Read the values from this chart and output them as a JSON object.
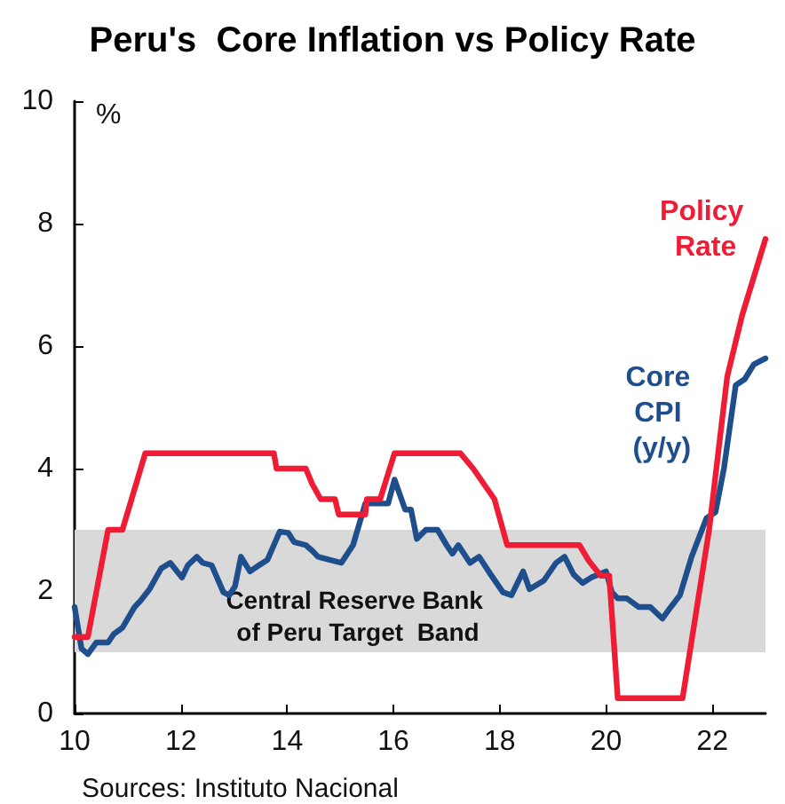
{
  "chart_data": {
    "type": "line",
    "title": "Peru's  Core Inflation vs Policy Rate",
    "ylabel": "%",
    "xlim": [
      10,
      23
    ],
    "xticks": [
      10,
      12,
      14,
      16,
      18,
      20,
      22
    ],
    "ylim": [
      0,
      10
    ],
    "yticks": [
      0,
      2,
      4,
      6,
      8,
      10
    ],
    "grid": false,
    "legend": false,
    "marker": "none",
    "bands": [
      {
        "axis": "y",
        "from": 1,
        "to": 3,
        "label": "Central Reserve Bank of Peru Target  Band",
        "color": "#d9d9d9"
      }
    ],
    "annotations": [
      "Sources: Instituto Nacional"
    ],
    "series": [
      {
        "name": "Core CPI (y/y)",
        "color": "#1f4e8c",
        "x": [
          10,
          10.13,
          10.25,
          10.41,
          10.63,
          10.74,
          10.9,
          11.13,
          11.24,
          11.41,
          11.63,
          11.8,
          12.02,
          12.13,
          12.3,
          12.41,
          12.58,
          12.8,
          12.91,
          13.02,
          13.13,
          13.3,
          13.47,
          13.63,
          13.86,
          14.02,
          14.13,
          14.35,
          14.47,
          14.58,
          14.8,
          15.02,
          15.24,
          15.47,
          15.69,
          15.9,
          16.02,
          16.22,
          16.33,
          16.44,
          16.61,
          16.83,
          17.0,
          17.11,
          17.22,
          17.44,
          17.61,
          17.83,
          18.06,
          18.22,
          18.44,
          18.56,
          18.83,
          19.06,
          19.22,
          19.39,
          19.56,
          19.72,
          20.0,
          20.11,
          20.22,
          20.39,
          20.61,
          20.83,
          21.06,
          21.22,
          21.39,
          21.61,
          21.89,
          22.06,
          22.22,
          22.44,
          22.61,
          22.78,
          23.0
        ],
        "values": [
          1.74,
          1.06,
          0.97,
          1.16,
          1.16,
          1.3,
          1.4,
          1.74,
          1.84,
          2.03,
          2.37,
          2.46,
          2.22,
          2.42,
          2.56,
          2.46,
          2.42,
          1.98,
          1.93,
          2.08,
          2.56,
          2.32,
          2.42,
          2.51,
          2.97,
          2.95,
          2.8,
          2.75,
          2.66,
          2.56,
          2.51,
          2.46,
          2.75,
          3.43,
          3.43,
          3.43,
          3.82,
          3.33,
          3.33,
          2.85,
          3.0,
          3.0,
          2.75,
          2.61,
          2.75,
          2.46,
          2.56,
          2.27,
          1.98,
          1.93,
          2.32,
          2.03,
          2.17,
          2.46,
          2.56,
          2.27,
          2.13,
          2.22,
          2.32,
          1.98,
          1.88,
          1.88,
          1.74,
          1.74,
          1.55,
          1.74,
          1.93,
          2.56,
          3.19,
          3.29,
          4.01,
          5.36,
          5.46,
          5.7,
          5.8
        ]
      },
      {
        "name": "Policy Rate",
        "color": "#ee1c35",
        "x": [
          10,
          10.25,
          10.63,
          10.9,
          11.33,
          13.75,
          13.8,
          14.35,
          14.47,
          14.63,
          14.9,
          14.97,
          15.47,
          15.5,
          15.75,
          16.02,
          17.26,
          17.5,
          17.9,
          18.14,
          19.5,
          19.67,
          19.9,
          20.06,
          20.22,
          21.44,
          21.94,
          22.28,
          22.56,
          23.0
        ],
        "values": [
          1.25,
          1.25,
          3.0,
          3.0,
          4.25,
          4.25,
          4.0,
          4.0,
          3.75,
          3.5,
          3.5,
          3.25,
          3.25,
          3.5,
          3.5,
          4.25,
          4.25,
          4.0,
          3.5,
          2.75,
          2.75,
          2.5,
          2.25,
          2.25,
          0.25,
          0.25,
          3.0,
          5.5,
          6.5,
          7.75
        ]
      }
    ]
  }
}
